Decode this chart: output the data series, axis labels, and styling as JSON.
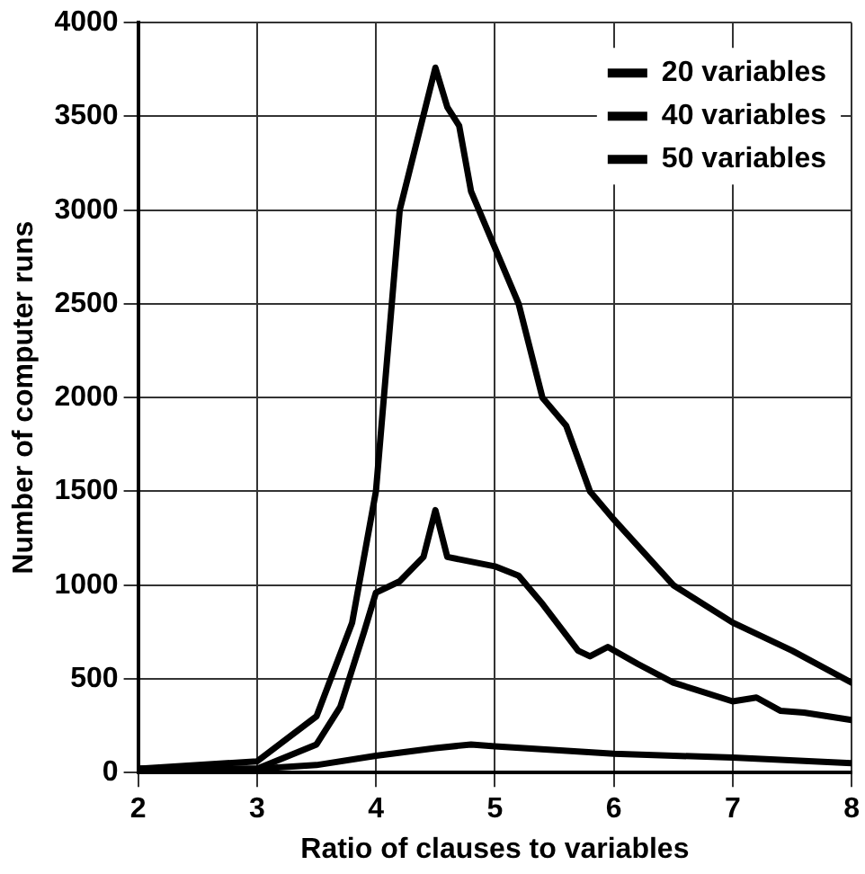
{
  "chart_data": {
    "type": "line",
    "xlabel": "Ratio of clauses to variables",
    "ylabel": "Number of computer runs",
    "xlim": [
      2,
      8
    ],
    "xticks": [
      2,
      3,
      4,
      5,
      6,
      7,
      8
    ],
    "ylim": [
      0,
      4000
    ],
    "yticks": [
      0,
      500,
      1000,
      1500,
      2000,
      2500,
      3000,
      3500,
      4000
    ],
    "grid": true,
    "legend": "top right",
    "marker": "none",
    "line_style": "solid",
    "series": [
      {
        "name": "20 variables",
        "color": "#000000",
        "x": [
          2,
          3,
          3.5,
          4,
          4.5,
          4.8,
          5,
          6,
          7,
          8
        ],
        "values": [
          20,
          20,
          40,
          90,
          130,
          150,
          140,
          100,
          80,
          50
        ]
      },
      {
        "name": "40 variables",
        "color": "#000000",
        "x": [
          2,
          3,
          3.5,
          3.7,
          3.9,
          4,
          4.2,
          4.4,
          4.5,
          4.6,
          5,
          5.2,
          5.4,
          5.7,
          5.8,
          5.95,
          6.2,
          6.5,
          7,
          7.2,
          7.4,
          7.6,
          8
        ],
        "values": [
          20,
          20,
          150,
          350,
          750,
          960,
          1020,
          1150,
          1400,
          1150,
          1100,
          1050,
          900,
          650,
          620,
          670,
          580,
          480,
          380,
          400,
          330,
          320,
          280
        ]
      },
      {
        "name": "50 variables",
        "color": "#000000",
        "x": [
          2,
          3,
          3.5,
          3.8,
          4,
          4.2,
          4.5,
          4.6,
          4.7,
          4.8,
          5,
          5.2,
          5.4,
          5.6,
          5.8,
          6,
          6.5,
          7,
          7.5,
          8
        ],
        "values": [
          20,
          60,
          300,
          800,
          1500,
          3000,
          3760,
          3550,
          3450,
          3100,
          2800,
          2500,
          2000,
          1850,
          1500,
          1350,
          1000,
          800,
          650,
          480
        ]
      }
    ]
  }
}
